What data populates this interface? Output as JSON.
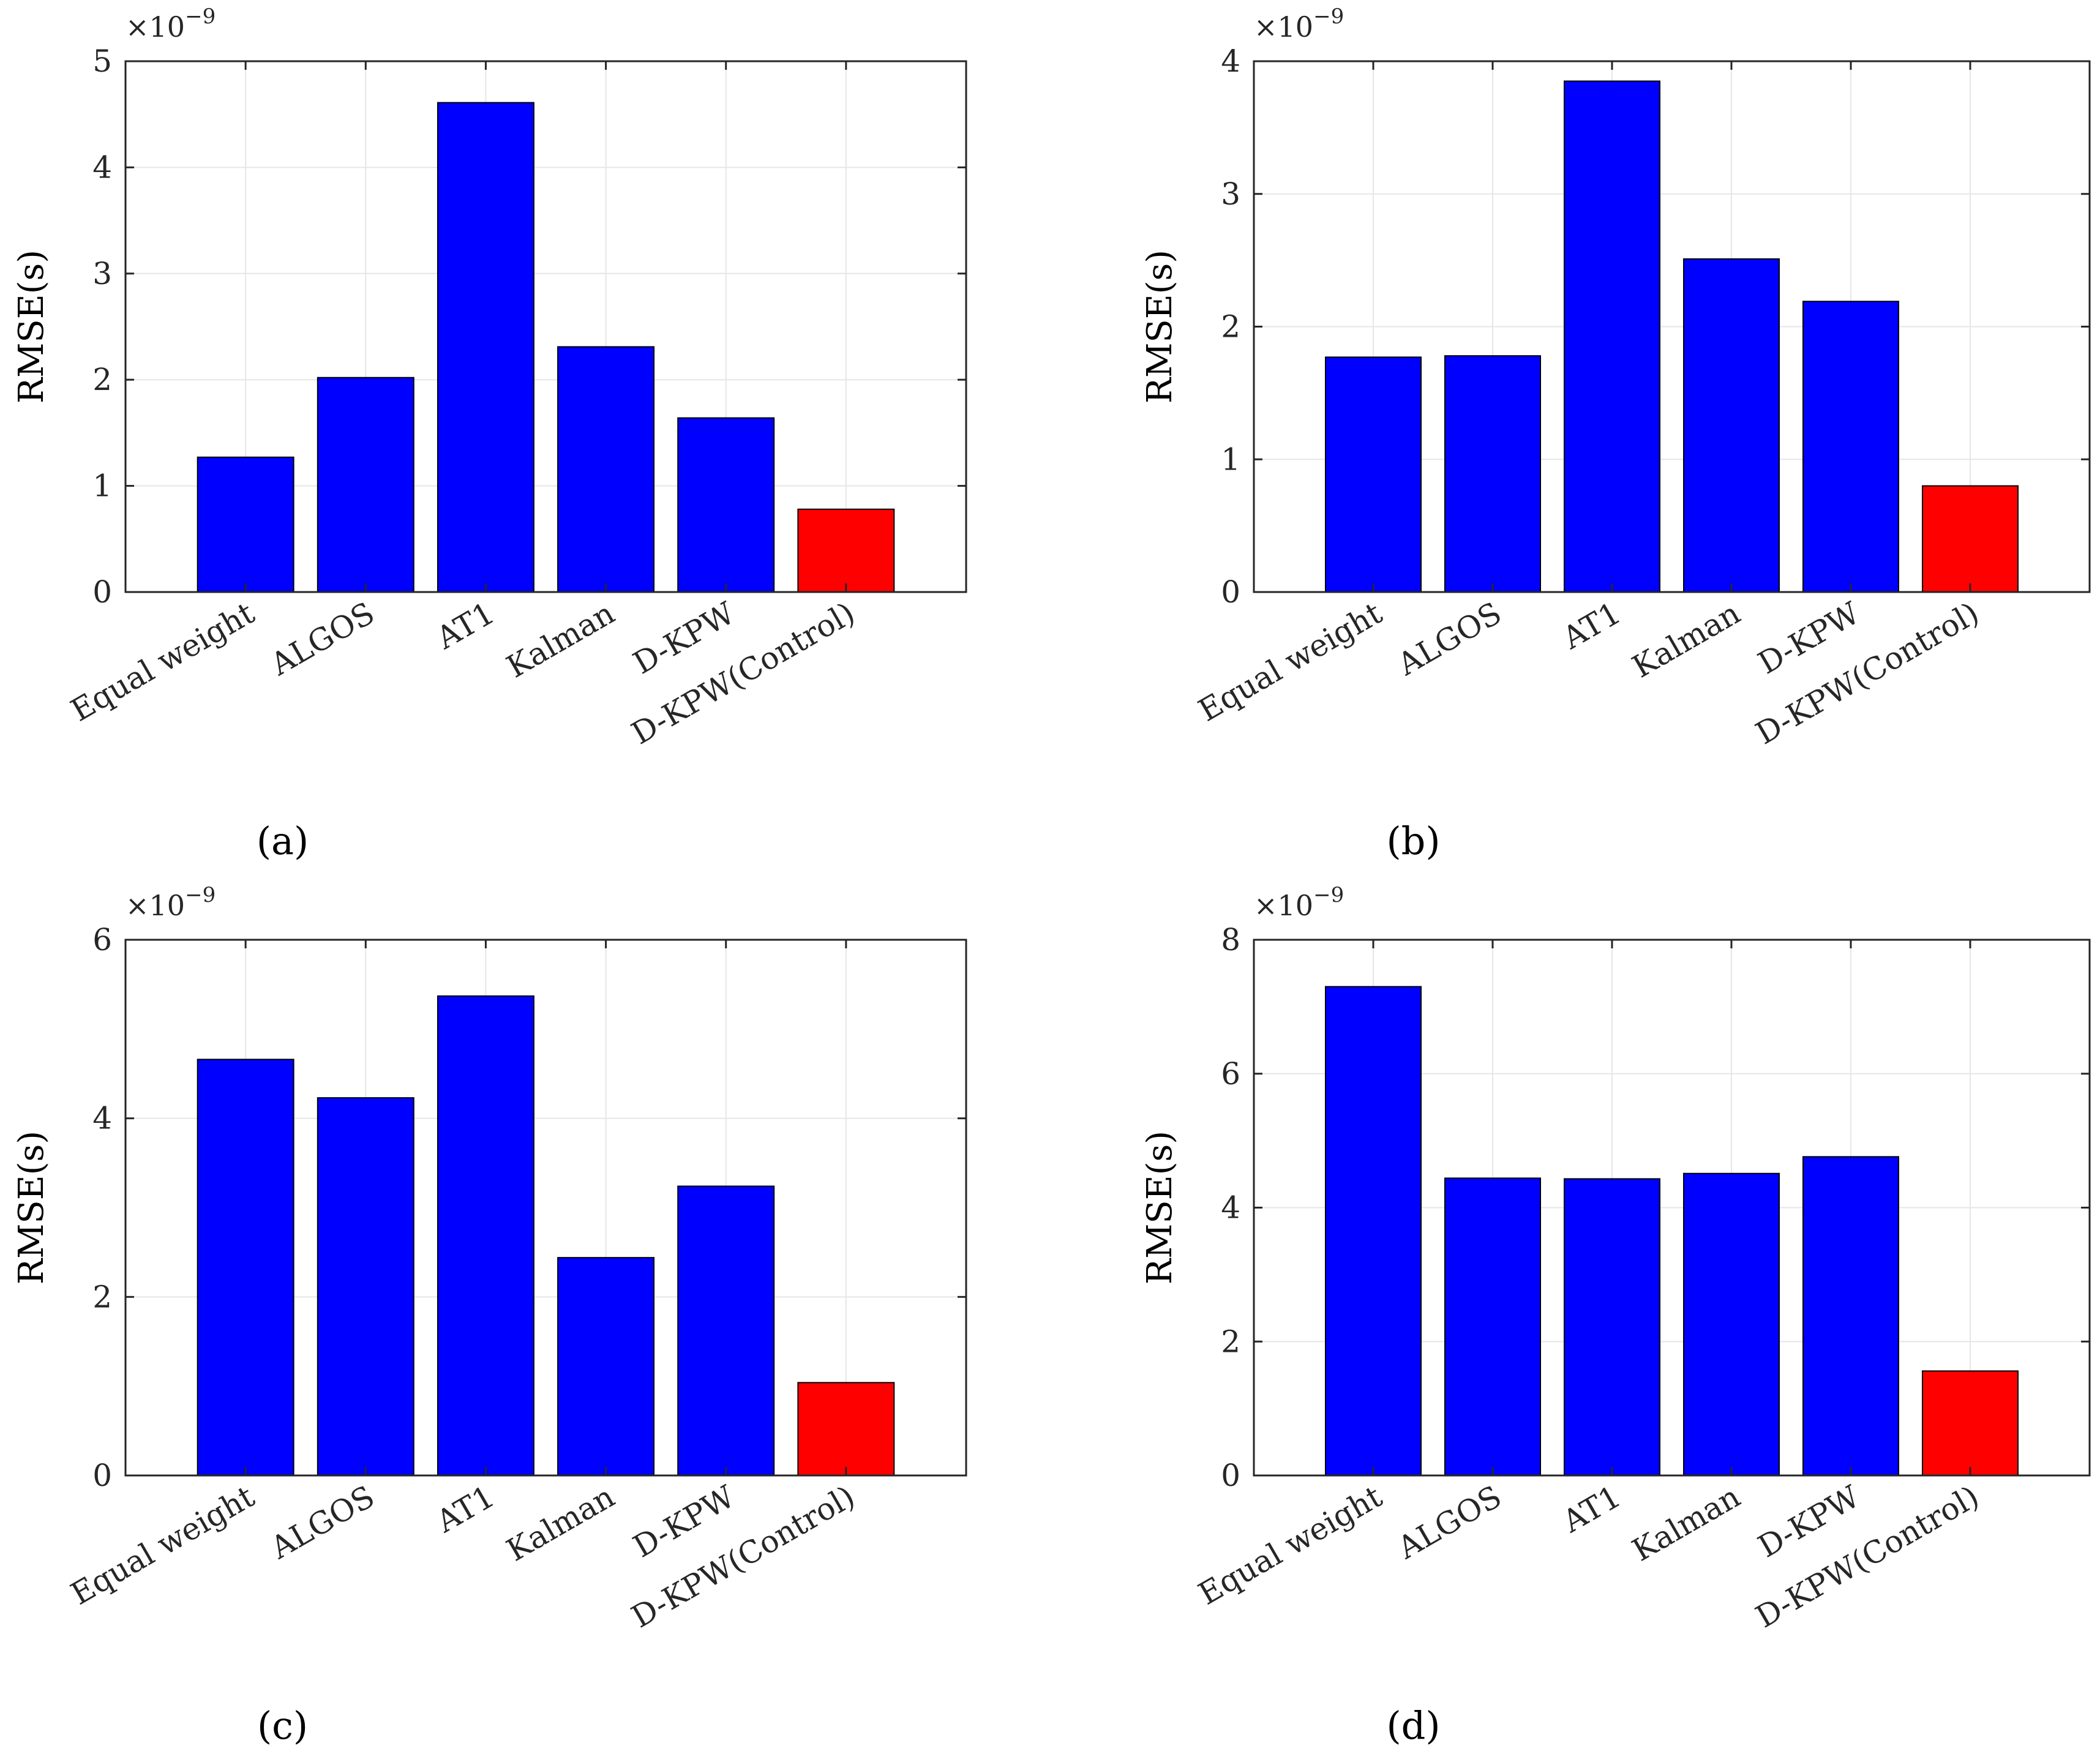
{
  "chart_data": [
    {
      "type": "bar",
      "panel_label": "(a)",
      "categories": [
        "Equal weight",
        "ALGOS",
        "AT1",
        "Kalman",
        "D-KPW",
        "D-KPW(Control)"
      ],
      "values": [
        1.27,
        2.02,
        4.61,
        2.31,
        1.64,
        0.78
      ],
      "bar_colors": [
        "#0000ff",
        "#0000ff",
        "#0000ff",
        "#0000ff",
        "#0000ff",
        "#ff0000"
      ],
      "ylabel": "RMSE(s)",
      "y_multiplier_base": "×10",
      "y_multiplier_exp": "−9",
      "ylim": [
        0,
        5
      ],
      "yticks": [
        "0",
        "1",
        "2",
        "3",
        "4",
        "5"
      ],
      "grid": true
    },
    {
      "type": "bar",
      "panel_label": "(b)",
      "categories": [
        "Equal weight",
        "ALGOS",
        "AT1",
        "Kalman",
        "D-KPW",
        "D-KPW(Control)"
      ],
      "values": [
        1.77,
        1.78,
        3.85,
        2.51,
        2.19,
        0.8
      ],
      "bar_colors": [
        "#0000ff",
        "#0000ff",
        "#0000ff",
        "#0000ff",
        "#0000ff",
        "#ff0000"
      ],
      "ylabel": "RMSE(s)",
      "y_multiplier_base": "×10",
      "y_multiplier_exp": "−9",
      "ylim": [
        0,
        4
      ],
      "yticks": [
        "0",
        "1",
        "2",
        "3",
        "4"
      ],
      "grid": true
    },
    {
      "type": "bar",
      "panel_label": "(c)",
      "categories": [
        "Equal weight",
        "ALGOS",
        "AT1",
        "Kalman",
        "D-KPW",
        "D-KPW(Control)"
      ],
      "values": [
        4.66,
        4.23,
        5.37,
        2.44,
        3.24,
        1.04
      ],
      "bar_colors": [
        "#0000ff",
        "#0000ff",
        "#0000ff",
        "#0000ff",
        "#0000ff",
        "#ff0000"
      ],
      "ylabel": "RMSE(s)",
      "y_multiplier_base": "×10",
      "y_multiplier_exp": "−9",
      "ylim": [
        0,
        6
      ],
      "yticks": [
        "0",
        "2",
        "4",
        "6"
      ],
      "grid": true
    },
    {
      "type": "bar",
      "panel_label": "(d)",
      "categories": [
        "Equal weight",
        "ALGOS",
        "AT1",
        "Kalman",
        "D-KPW",
        "D-KPW(Control)"
      ],
      "values": [
        7.3,
        4.44,
        4.43,
        4.51,
        4.76,
        1.56
      ],
      "bar_colors": [
        "#0000ff",
        "#0000ff",
        "#0000ff",
        "#0000ff",
        "#0000ff",
        "#ff0000"
      ],
      "ylabel": "RMSE(s)",
      "y_multiplier_base": "×10",
      "y_multiplier_exp": "−9",
      "ylim": [
        0,
        8
      ],
      "yticks": [
        "0",
        "2",
        "4",
        "6",
        "8"
      ],
      "grid": true
    }
  ]
}
